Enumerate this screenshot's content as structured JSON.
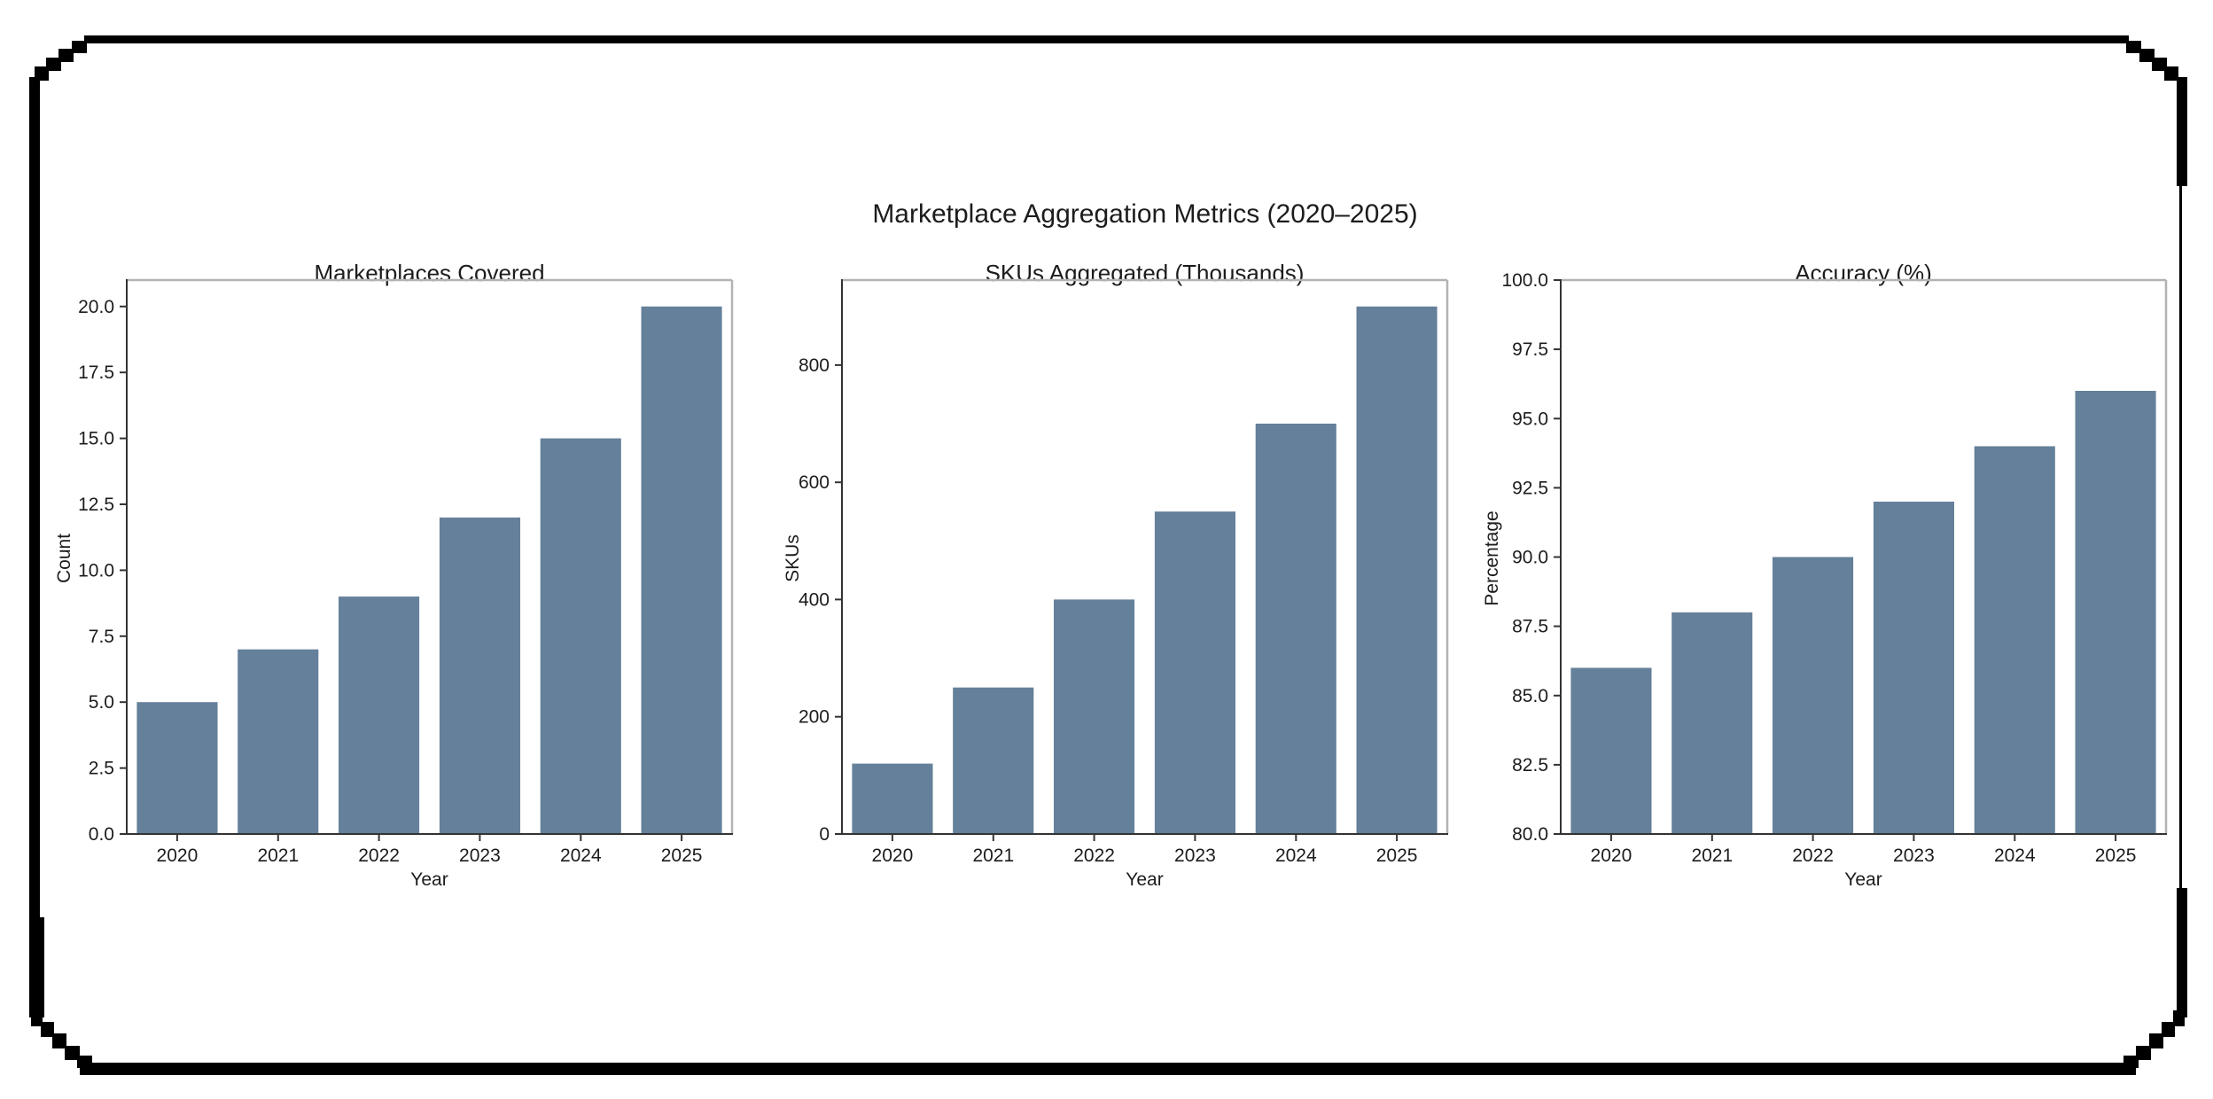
{
  "figure": {
    "suptitle": "Marketplace Aggregation Metrics (2020–2025)",
    "background": "#ffffff",
    "frame_color": "#000000"
  },
  "styles": {
    "axis_text_color": "#1c1c1c",
    "spine_dark": "#333333",
    "spine_light": "#b3b3b3",
    "bar_color": "#64809a"
  },
  "chart_data": [
    {
      "type": "bar",
      "title": "Marketplaces Covered",
      "xlabel": "Year",
      "ylabel": "Count",
      "categories": [
        "2020",
        "2021",
        "2022",
        "2023",
        "2024",
        "2025"
      ],
      "values": [
        5,
        7,
        9,
        12,
        15,
        20
      ],
      "ylim": [
        0,
        21
      ],
      "yticks": [
        0,
        2.5,
        5,
        7.5,
        10,
        12.5,
        15,
        17.5,
        20
      ],
      "ytick_labels": [
        "0.0",
        "2.5",
        "5.0",
        "7.5",
        "10.0",
        "12.5",
        "15.0",
        "17.5",
        "20.0"
      ],
      "bar_color": "#64809a",
      "grid": false,
      "legend": null
    },
    {
      "type": "bar",
      "title": "SKUs Aggregated (Thousands)",
      "xlabel": "Year",
      "ylabel": "SKUs",
      "categories": [
        "2020",
        "2021",
        "2022",
        "2023",
        "2024",
        "2025"
      ],
      "values": [
        120,
        250,
        400,
        550,
        700,
        900
      ],
      "ylim": [
        0,
        945
      ],
      "yticks": [
        0,
        200,
        400,
        600,
        800
      ],
      "ytick_labels": [
        "0",
        "200",
        "400",
        "600",
        "800"
      ],
      "bar_color": "#64809a",
      "grid": false,
      "legend": null
    },
    {
      "type": "bar",
      "title": "Accuracy (%)",
      "xlabel": "Year",
      "ylabel": "Percentage",
      "categories": [
        "2020",
        "2021",
        "2022",
        "2023",
        "2024",
        "2025"
      ],
      "values": [
        86,
        88,
        90,
        92,
        94,
        96
      ],
      "ylim": [
        80,
        100
      ],
      "yticks": [
        80,
        82.5,
        85,
        87.5,
        90,
        92.5,
        95,
        97.5,
        100
      ],
      "ytick_labels": [
        "80.0",
        "82.5",
        "85.0",
        "87.5",
        "90.0",
        "92.5",
        "95.0",
        "97.5",
        "100.0"
      ],
      "bar_color": "#64809a",
      "grid": false,
      "legend": null
    }
  ]
}
